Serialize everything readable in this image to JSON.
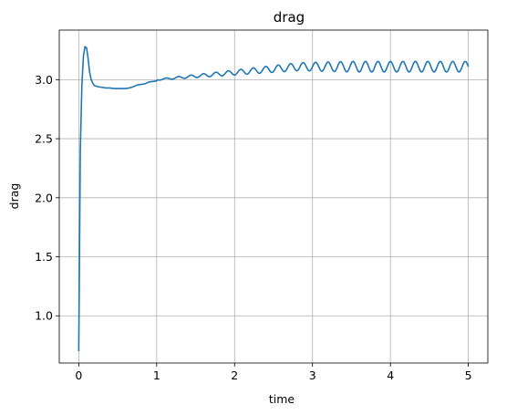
{
  "chart_data": {
    "type": "line",
    "title": "drag",
    "xlabel": "time",
    "ylabel": "drag",
    "xlim": [
      -0.25,
      5.25
    ],
    "ylim": [
      0.6,
      3.42
    ],
    "xticks": [
      0,
      1,
      2,
      3,
      4,
      5
    ],
    "xtick_labels": [
      "0",
      "1",
      "2",
      "3",
      "4",
      "5"
    ],
    "yticks": [
      1.0,
      1.5,
      2.0,
      2.5,
      3.0
    ],
    "ytick_labels": [
      "1.0",
      "1.5",
      "2.0",
      "2.5",
      "3.0"
    ],
    "grid": true,
    "line_color": "#1f77b4",
    "grid_color": "#b0b0b0",
    "series": [
      {
        "x": [
          0.0,
          0.02,
          0.04,
          0.06,
          0.08,
          0.1,
          0.12,
          0.14,
          0.16,
          0.18,
          0.2,
          0.25,
          0.3,
          0.35,
          0.4,
          0.45,
          0.5,
          0.55,
          0.6,
          0.65,
          0.7,
          0.75,
          0.8,
          0.85,
          0.9,
          0.95,
          1.0
        ],
        "y": [
          0.7,
          2.4,
          2.95,
          3.2,
          3.28,
          3.27,
          3.18,
          3.06,
          3.0,
          2.97,
          2.95,
          2.94,
          2.935,
          2.93,
          2.93,
          2.925,
          2.925,
          2.925,
          2.925,
          2.93,
          2.94,
          2.955,
          2.96,
          2.965,
          2.98,
          2.985,
          2.99
        ],
        "oscillation_after": {
          "from_x": 1.0,
          "to_x": 5.0,
          "mean": [
            3.0,
            3.11
          ],
          "amplitude": [
            0.005,
            0.045
          ],
          "period": 0.16
        }
      }
    ]
  }
}
